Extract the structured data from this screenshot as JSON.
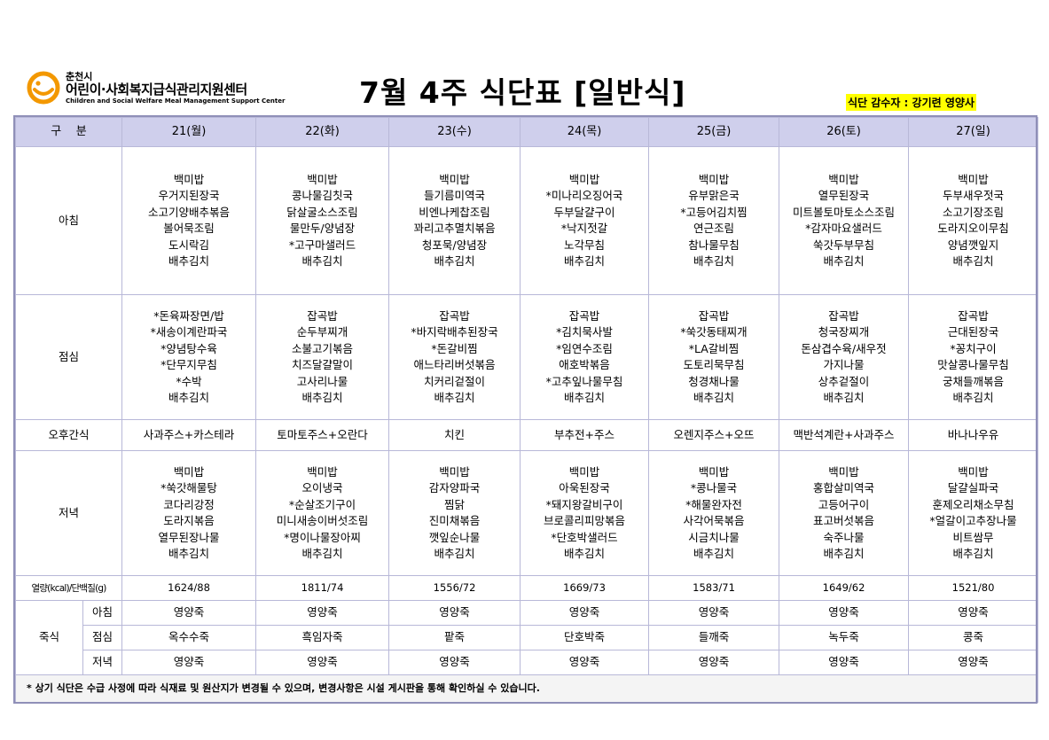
{
  "header": {
    "org_city": "춘천시",
    "org_name": "어린이·사회복지급식관리지원센터",
    "org_english": "Children and Social Welfare Meal Management Support Center",
    "title": "7월  4주  식단표  [일반식]",
    "supervisor": "식단 감수자 : 강기련 영양사"
  },
  "table": {
    "corner_label": "구    분",
    "days": [
      "21(월)",
      "22(화)",
      "23(수)",
      "24(목)",
      "25(금)",
      "26(토)",
      "27(일)"
    ],
    "breakfast": {
      "label": "아침",
      "menus": [
        [
          "백미밥",
          "우거지된장국",
          "소고기양배추볶음",
          "볼어묵조림",
          "도시락김",
          "배추김치"
        ],
        [
          "백미밥",
          "콩나물김칫국",
          "닭살굴소스조림",
          "물만두/양념장",
          "*고구마샐러드",
          "배추김치"
        ],
        [
          "백미밥",
          "들기름미역국",
          "비엔나케찹조림",
          "꽈리고추멸치볶음",
          "청포묵/양념장",
          "배추김치"
        ],
        [
          "백미밥",
          "*미나리오징어국",
          "두부달걀구이",
          "*낙지젓갈",
          "노각무침",
          "배추김치"
        ],
        [
          "백미밥",
          "유부맑은국",
          "*고등어김치찜",
          "연근조림",
          "참나물무침",
          "배추김치"
        ],
        [
          "백미밥",
          "열무된장국",
          "미트볼토마토소스조림",
          "*감자마요샐러드",
          "쑥갓두부무침",
          "배추김치"
        ],
        [
          "백미밥",
          "두부새우젓국",
          "소고기장조림",
          "도라지오이무침",
          "양념깻잎지",
          "배추김치"
        ]
      ]
    },
    "lunch": {
      "label": "점심",
      "menus": [
        [
          "*돈육짜장면/밥",
          "*새송이계란파국",
          "*양념탕수육",
          "*단무지무침",
          "*수박",
          "배추김치"
        ],
        [
          "잡곡밥",
          "순두부찌개",
          "소불고기볶음",
          "치즈달걀말이",
          "고사리나물",
          "배추김치"
        ],
        [
          "잡곡밥",
          "*바지락배추된장국",
          "*돈갈비찜",
          "애느타리버섯볶음",
          "치커리겉절이",
          "배추김치"
        ],
        [
          "잡곡밥",
          "*김치묵사발",
          "*임연수조림",
          "애호박볶음",
          "*고추잎나물무침",
          "배추김치"
        ],
        [
          "잡곡밥",
          "*쑥갓동태찌개",
          "*LA갈비찜",
          "도토리묵무침",
          "청경채나물",
          "배추김치"
        ],
        [
          "잡곡밥",
          "청국장찌개",
          "돈삼겹수육/새우젓",
          "가지나물",
          "상추겉절이",
          "배추김치"
        ],
        [
          "잡곡밥",
          "근대된장국",
          "*꽁치구이",
          "맛살콩나물무침",
          "궁채들깨볶음",
          "배추김치"
        ]
      ]
    },
    "snack": {
      "label": "오후간식",
      "menus": [
        "사과주스+카스테라",
        "토마토주스+오란다",
        "치킨",
        "부추전+주스",
        "오렌지주스+오뜨",
        "맥반석계란+사과주스",
        "바나나우유"
      ]
    },
    "dinner": {
      "label": "저녁",
      "menus": [
        [
          "백미밥",
          "*쑥갓해물탕",
          "코다리강정",
          "도라지볶음",
          "열무된장나물",
          "배추김치"
        ],
        [
          "백미밥",
          "오이냉국",
          "*순살조기구이",
          "미니새송이버섯조림",
          "*명이나물장아찌",
          "배추김치"
        ],
        [
          "백미밥",
          "감자양파국",
          "찜닭",
          "진미채볶음",
          "깻잎순나물",
          "배추김치"
        ],
        [
          "백미밥",
          "아욱된장국",
          "*돼지왕갈비구이",
          "브로콜리피망볶음",
          "*단호박샐러드",
          "배추김치"
        ],
        [
          "백미밥",
          "*콩나물국",
          "*해물완자전",
          "사각어묵볶음",
          "시금치나물",
          "배추김치"
        ],
        [
          "백미밥",
          "홍합살미역국",
          "고등어구이",
          "표고버섯볶음",
          "숙주나물",
          "배추김치"
        ],
        [
          "백미밥",
          "달걀실파국",
          "훈제오리채소무침",
          "*얼갈이고추장나물",
          "비트쌈무",
          "배추김치"
        ]
      ]
    },
    "calories": {
      "label": "열량(kcal)/단백질(g)",
      "values": [
        "1624/88",
        "1811/74",
        "1556/72",
        "1669/73",
        "1583/71",
        "1649/62",
        "1521/80"
      ]
    },
    "porridge": {
      "label": "죽식",
      "rows": [
        {
          "label": "아침",
          "values": [
            "영양죽",
            "영양죽",
            "영양죽",
            "영양죽",
            "영양죽",
            "영양죽",
            "영양죽"
          ]
        },
        {
          "label": "점심",
          "values": [
            "옥수수죽",
            "흑임자죽",
            "팥죽",
            "단호박죽",
            "들깨죽",
            "녹두죽",
            "콩죽"
          ]
        },
        {
          "label": "저녁",
          "values": [
            "영양죽",
            "영양죽",
            "영양죽",
            "영양죽",
            "영양죽",
            "영양죽",
            "영양죽"
          ]
        }
      ]
    },
    "note": "* 상기 식단은 수급 사정에 따라 식재료 및 원산지가 변경될 수 있으며, 변경사항은 시설 게시판을 통해 확인하실 수 있습니다."
  },
  "colors": {
    "header_bg": "#cfcfec",
    "border": "#b8b8d8",
    "logo_orange": "#f39800",
    "highlight": "#ffff00"
  }
}
